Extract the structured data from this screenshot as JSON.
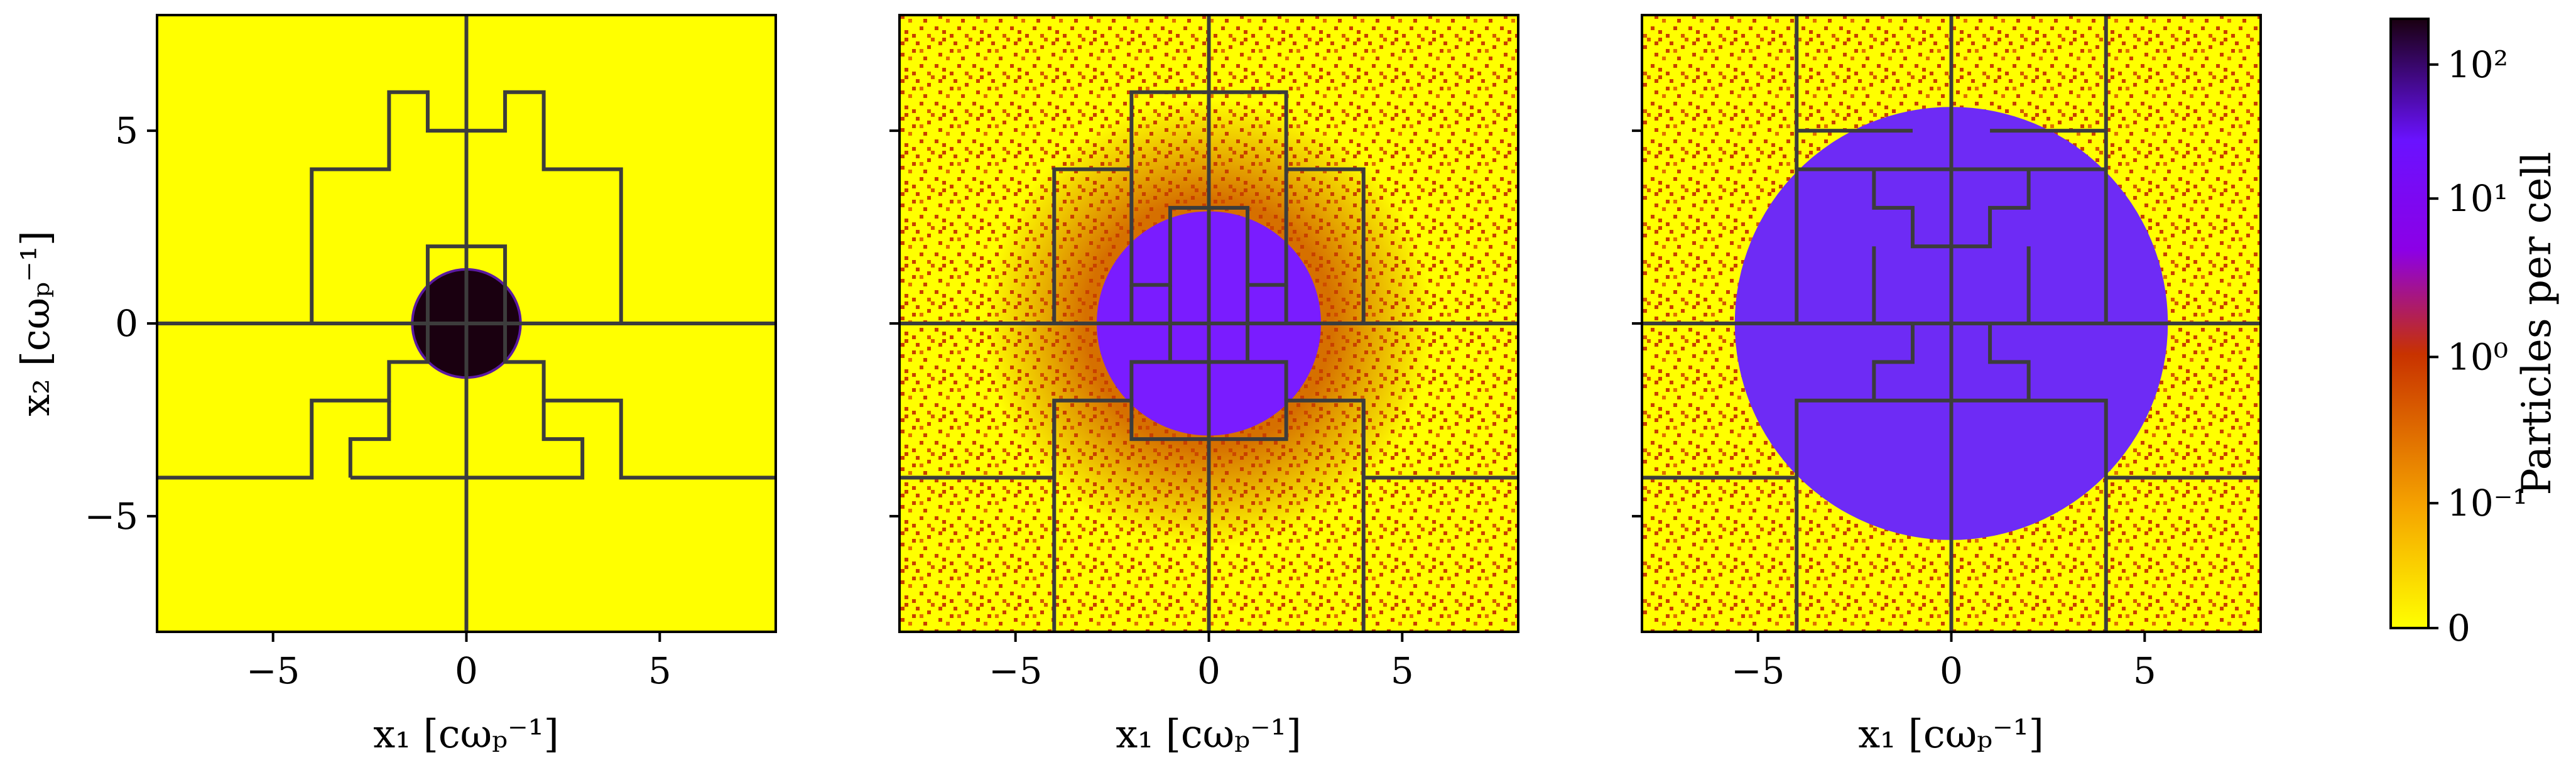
{
  "chart_data": [
    {
      "type": "heatmap",
      "panel": 1,
      "xlabel": "x₁ [cωₚ⁻¹]",
      "ylabel": "x₂ [cωₚ⁻¹]",
      "xlim": [
        -8,
        8
      ],
      "ylim": [
        -8,
        8
      ],
      "xticks": [
        "−5",
        "0",
        "5"
      ],
      "yticks": [
        "5",
        "0",
        "−5"
      ],
      "xtick_values": [
        -5,
        0,
        5
      ],
      "ytick_values": [
        5,
        0,
        -5
      ],
      "disk": {
        "center": [
          0,
          0
        ],
        "radius": 1.4,
        "density": "high (~2×10²)"
      },
      "background_density": "0 (empty)"
    },
    {
      "type": "heatmap",
      "panel": 2,
      "xlabel": "x₁ [cωₚ⁻¹]",
      "xlim": [
        -8,
        8
      ],
      "ylim": [
        -8,
        8
      ],
      "xticks": [
        "−5",
        "0",
        "5"
      ],
      "xtick_values": [
        -5,
        0,
        5
      ],
      "disk": {
        "center": [
          0,
          0
        ],
        "radius": 2.9,
        "density": "~10¹"
      },
      "background_density": "sparse noise, 0–10⁰"
    },
    {
      "type": "heatmap",
      "panel": 3,
      "xlabel": "x₁ [cωₚ⁻¹]",
      "xlim": [
        -8,
        8
      ],
      "ylim": [
        -8,
        8
      ],
      "xticks": [
        "−5",
        "0",
        "5"
      ],
      "xtick_values": [
        -5,
        0,
        5
      ],
      "disk": {
        "center": [
          0,
          0
        ],
        "radius": 5.6,
        "density": "~10¹"
      },
      "background_density": "sparse noise, 0–10⁰"
    }
  ],
  "colorbar": {
    "label": "Particles per cell",
    "scale": "symlog",
    "ticks": [
      {
        "value": 0,
        "label": "0"
      },
      {
        "value": 0.1,
        "label": "10⁻¹"
      },
      {
        "value": 1,
        "label": "10⁰"
      },
      {
        "value": 10,
        "label": "10¹"
      },
      {
        "value": 100,
        "label": "10²"
      }
    ],
    "max": 200,
    "colors": [
      "#ffff00",
      "#f5a300",
      "#c83200",
      "#8c00e6",
      "#6a12ff",
      "#1a0010"
    ]
  },
  "accent_colors": {
    "grid_line": "#3c3c3c",
    "empty": "#ffff00",
    "disk_dense": "#1a0010",
    "disk_mid": "#6e2bf5",
    "noise_red": "#c84000"
  }
}
